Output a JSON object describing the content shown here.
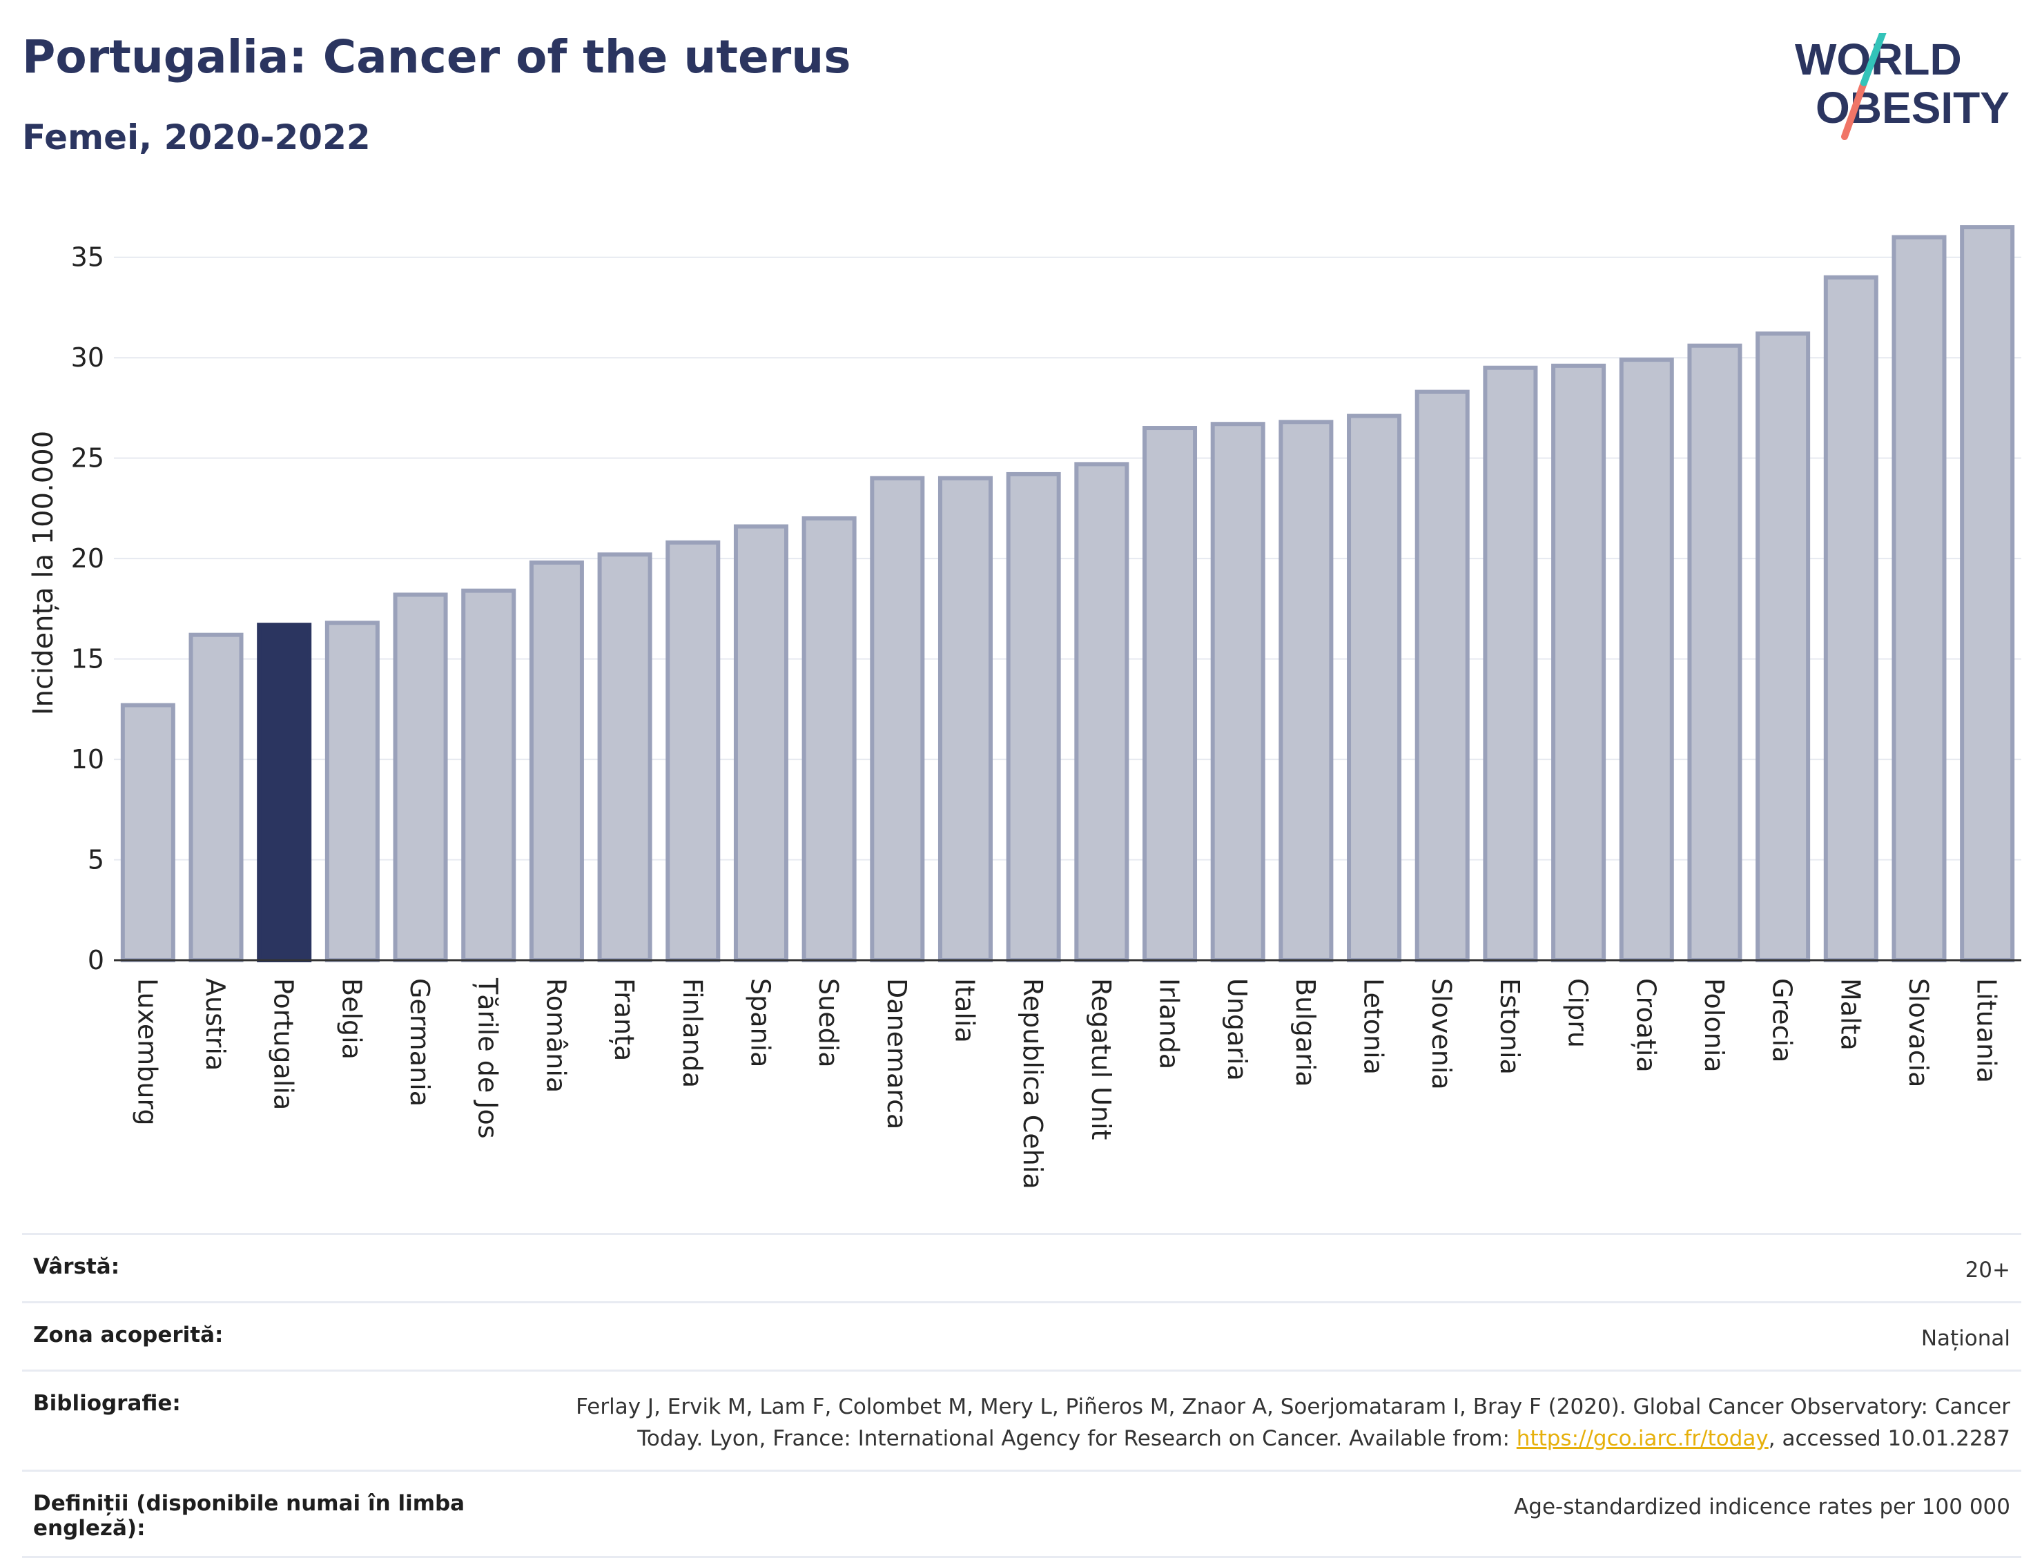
{
  "header": {
    "title": "Portugalia: Cancer of the uterus",
    "subtitle": "Femei, 2020-2022"
  },
  "logo": {
    "line1": "WORLD",
    "line2": "OBESITY"
  },
  "chart_data": {
    "type": "bar",
    "title": "Portugalia: Cancer of the uterus",
    "subtitle": "Femei, 2020-2022",
    "xlabel": "",
    "ylabel": "Incidența la 100.000",
    "ylim": [
      0,
      37.5
    ],
    "yticks": [
      0,
      5,
      10,
      15,
      20,
      25,
      30,
      35
    ],
    "grid": true,
    "highlight": "Portugalia",
    "colors": {
      "bar": "#bfc3d0",
      "bar_edge": "#9aa1ba",
      "highlight": "#2b3560",
      "grid": "#e6e9f0",
      "axis": "#333333"
    },
    "categories": [
      "Luxemburg",
      "Austria",
      "Portugalia",
      "Belgia",
      "Germania",
      "Țările de Jos",
      "România",
      "Franța",
      "Finlanda",
      "Spania",
      "Suedia",
      "Danemarca",
      "Italia",
      "Republica Cehia",
      "Regatul Unit",
      "Irlanda",
      "Ungaria",
      "Bulgaria",
      "Letonia",
      "Slovenia",
      "Estonia",
      "Cipru",
      "Croația",
      "Polonia",
      "Grecia",
      "Malta",
      "Slovacia",
      "Lituania"
    ],
    "values": [
      12.7,
      16.2,
      16.7,
      16.8,
      18.2,
      18.4,
      19.8,
      20.2,
      20.8,
      21.6,
      22.0,
      24.0,
      24.0,
      24.2,
      24.7,
      26.5,
      26.7,
      26.8,
      27.1,
      28.3,
      29.5,
      29.6,
      29.9,
      30.6,
      31.2,
      34.0,
      36.0,
      36.5
    ]
  },
  "meta": {
    "age_label": "Vârstă:",
    "age_value": "20+",
    "area_label": "Zona acoperită:",
    "area_value": "Național",
    "bib_label": "Bibliografie:",
    "bib_line1": "Ferlay J, Ervik M, Lam F, Colombet M, Mery L, Piñeros M, Znaor A, Soerjomataram I, Bray F (2020). Global Cancer Observatory: Cancer",
    "bib_line2_pre": "Today. Lyon, France: International Agency for Research on Cancer. Available from: ",
    "bib_link": "https://gco.iarc.fr/today",
    "bib_line2_post": ", accessed 10.01.2287",
    "def_label": "Definiții (disponibile numai în limba engleză):",
    "def_value": "Age-standardized indicence rates per 100 000"
  }
}
